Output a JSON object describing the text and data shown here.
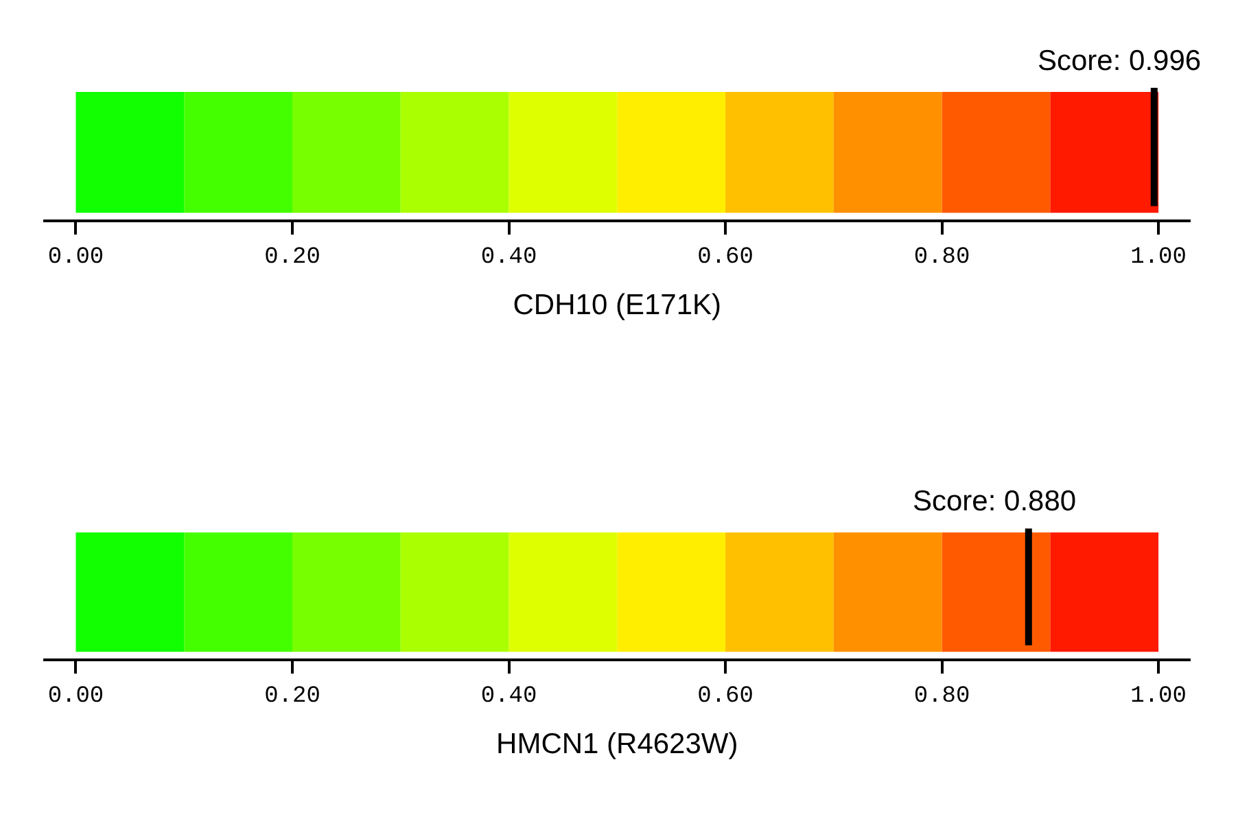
{
  "chart_data": [
    {
      "type": "bar",
      "orientation": "horizontal",
      "stacked": true,
      "xlabel": "CDH10 (E171K)",
      "xlim": [
        -0.03,
        1.03
      ],
      "tick_labels": "x",
      "categories": [
        null
      ],
      "xticks": [
        {
          "value": 0,
          "label": "0.00"
        },
        {
          "value": 0.2,
          "label": "0.20"
        },
        {
          "value": 0.4,
          "label": "0.40"
        },
        {
          "value": 0.6,
          "label": "0.60"
        },
        {
          "value": 0.8,
          "label": "0.80"
        },
        {
          "value": 1,
          "label": "1.00"
        }
      ],
      "ref_lines": [
        {
          "axis": "x",
          "value": 0.996,
          "label": "Score: 0.996",
          "color": "#000000"
        }
      ],
      "series": [
        {
          "color": "#11ff00",
          "values": [
            0.1
          ]
        },
        {
          "color": "#44ff00",
          "values": [
            0.1
          ]
        },
        {
          "color": "#77ff00",
          "values": [
            0.1
          ]
        },
        {
          "color": "#aaff00",
          "values": [
            0.1
          ]
        },
        {
          "color": "#ddff00",
          "values": [
            0.1
          ]
        },
        {
          "color": "#ffee00",
          "values": [
            0.1
          ]
        },
        {
          "color": "#ffc000",
          "values": [
            0.1
          ]
        },
        {
          "color": "#ff9000",
          "values": [
            0.1
          ]
        },
        {
          "color": "#ff5a00",
          "values": [
            0.1
          ]
        },
        {
          "color": "#ff1a00",
          "values": [
            0.1
          ]
        }
      ]
    },
    {
      "type": "bar",
      "orientation": "horizontal",
      "stacked": true,
      "xlabel": "HMCN1 (R4623W)",
      "xlim": [
        -0.03,
        1.03
      ],
      "tick_labels": "x",
      "categories": [
        null
      ],
      "xticks": [
        {
          "value": 0,
          "label": "0.00"
        },
        {
          "value": 0.2,
          "label": "0.20"
        },
        {
          "value": 0.4,
          "label": "0.40"
        },
        {
          "value": 0.6,
          "label": "0.60"
        },
        {
          "value": 0.8,
          "label": "0.80"
        },
        {
          "value": 1,
          "label": "1.00"
        }
      ],
      "ref_lines": [
        {
          "axis": "x",
          "value": 0.88,
          "label": "Score: 0.880",
          "color": "#000000"
        }
      ],
      "series": [
        {
          "color": "#11ff00",
          "values": [
            0.1
          ]
        },
        {
          "color": "#44ff00",
          "values": [
            0.1
          ]
        },
        {
          "color": "#77ff00",
          "values": [
            0.1
          ]
        },
        {
          "color": "#aaff00",
          "values": [
            0.1
          ]
        },
        {
          "color": "#ddff00",
          "values": [
            0.1
          ]
        },
        {
          "color": "#ffee00",
          "values": [
            0.1
          ]
        },
        {
          "color": "#ffc000",
          "values": [
            0.1
          ]
        },
        {
          "color": "#ff9000",
          "values": [
            0.1
          ]
        },
        {
          "color": "#ff5a00",
          "values": [
            0.1
          ]
        },
        {
          "color": "#ff1a00",
          "values": [
            0.1
          ]
        }
      ]
    }
  ]
}
